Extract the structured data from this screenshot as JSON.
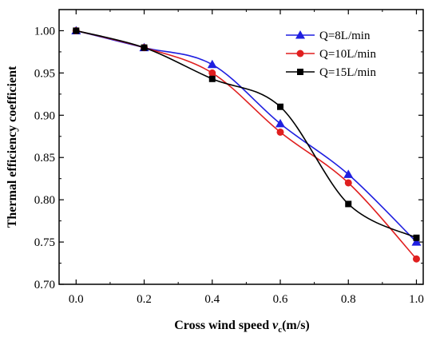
{
  "chart_data": {
    "type": "line",
    "xlabel_main": "Cross wind speed ",
    "xlabel_var": "v",
    "xlabel_sub": "c",
    "xlabel_unit": "(m/s)",
    "ylabel": "Thermal efficiency coefficient",
    "xlim": [
      -0.05,
      1.02
    ],
    "ylim": [
      0.7,
      1.025
    ],
    "x_ticks": [
      "0.0",
      "0.2",
      "0.4",
      "0.6",
      "0.8",
      "1.0"
    ],
    "y_ticks": [
      "0.70",
      "0.75",
      "0.80",
      "0.85",
      "0.90",
      "0.95",
      "1.00"
    ],
    "legend_position": "top-right",
    "grid": false,
    "x": [
      0.0,
      0.2,
      0.4,
      0.6,
      0.8,
      1.0
    ],
    "series": [
      {
        "name": "Q=8L/min",
        "values": [
          1.0,
          0.98,
          0.96,
          0.89,
          0.83,
          0.75
        ],
        "color": "#1f1fe0",
        "marker": "triangle"
      },
      {
        "name": "Q=10L/min",
        "values": [
          1.0,
          0.98,
          0.95,
          0.88,
          0.82,
          0.73
        ],
        "color": "#e01f1f",
        "marker": "circle"
      },
      {
        "name": "Q=15L/min",
        "values": [
          1.0,
          0.98,
          0.943,
          0.91,
          0.795,
          0.755
        ],
        "color": "#000000",
        "marker": "square"
      }
    ]
  }
}
